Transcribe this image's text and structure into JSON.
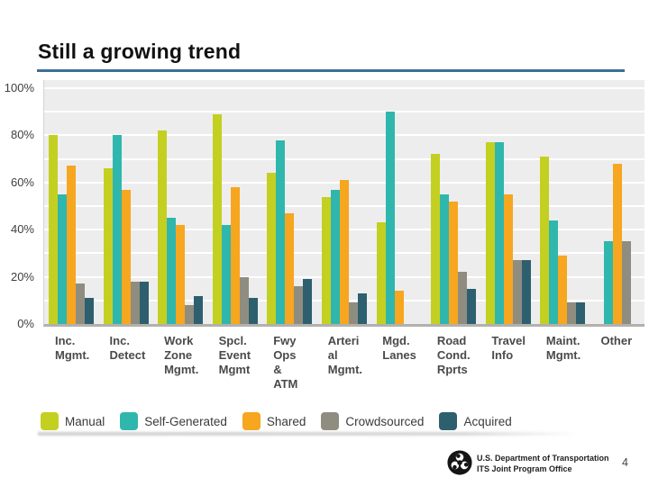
{
  "slide": {
    "title": "Still a growing trend",
    "page_number": "4",
    "footer": {
      "org_line1": "U.S. Department of Transportation",
      "org_line2": "ITS Joint Program Office",
      "logo": "usdot-triskelion-logo"
    },
    "accent_colors": {
      "title_rule": "#3c6e96",
      "logo_black": "#151515"
    }
  },
  "chart_data": {
    "type": "bar",
    "title": "",
    "xlabel": "",
    "ylabel": "",
    "unit": "percent",
    "ylim": [
      0,
      100
    ],
    "grid": {
      "horizontal": true,
      "step": 10,
      "color": "#ffffff"
    },
    "plot_background": "#ededed",
    "axis_line_color": "#b3b1ad",
    "legend_position": "bottom",
    "ytick_values": [
      0,
      20,
      40,
      60,
      80,
      100
    ],
    "ytick_labels": [
      "0%",
      "20%",
      "40%",
      "60%",
      "80%",
      "100%"
    ],
    "categories": [
      "Inc. Mgmt.",
      "Inc. Detect",
      "Work Zone Mgmt.",
      "Spcl. Event Mgmt",
      "Fwy Ops & ATM",
      "Arterial Mgmt.",
      "Mgd. Lanes",
      "Road Cond. Rprts",
      "Travel Info",
      "Maint. Mgmt.",
      "Other"
    ],
    "category_label_lines": [
      [
        "Inc.",
        "Mgmt."
      ],
      [
        "Inc.",
        "Detect"
      ],
      [
        "Work",
        "Zone",
        "Mgmt."
      ],
      [
        "Spcl.",
        "Event",
        "Mgmt"
      ],
      [
        "Fwy",
        "Ops",
        "&",
        "ATM"
      ],
      [
        "Arteri",
        "al",
        "Mgmt."
      ],
      [
        "Mgd.",
        "Lanes"
      ],
      [
        "Road",
        "Cond.",
        "Rprts"
      ],
      [
        "Travel",
        "Info"
      ],
      [
        "Maint.",
        "Mgmt."
      ],
      [
        "Other"
      ]
    ],
    "series": [
      {
        "name": "Manual",
        "color": "#c3d021",
        "values": [
          80,
          66,
          82,
          89,
          64,
          54,
          43,
          72,
          77,
          71,
          0
        ]
      },
      {
        "name": "Self-Generated",
        "color": "#2fb7ad",
        "values": [
          55,
          80,
          45,
          42,
          78,
          57,
          90,
          55,
          77,
          44,
          35
        ]
      },
      {
        "name": "Shared",
        "color": "#f6a61f",
        "values": [
          67,
          57,
          42,
          58,
          47,
          61,
          14,
          52,
          55,
          29,
          68
        ]
      },
      {
        "name": "Crowdsourced",
        "color": "#8f8d80",
        "values": [
          17,
          18,
          8,
          20,
          16,
          9,
          0,
          22,
          27,
          9,
          35
        ]
      },
      {
        "name": "Acquired",
        "color": "#2d5f6e",
        "values": [
          11,
          18,
          12,
          11,
          19,
          13,
          0,
          15,
          27,
          9,
          0
        ]
      }
    ]
  }
}
